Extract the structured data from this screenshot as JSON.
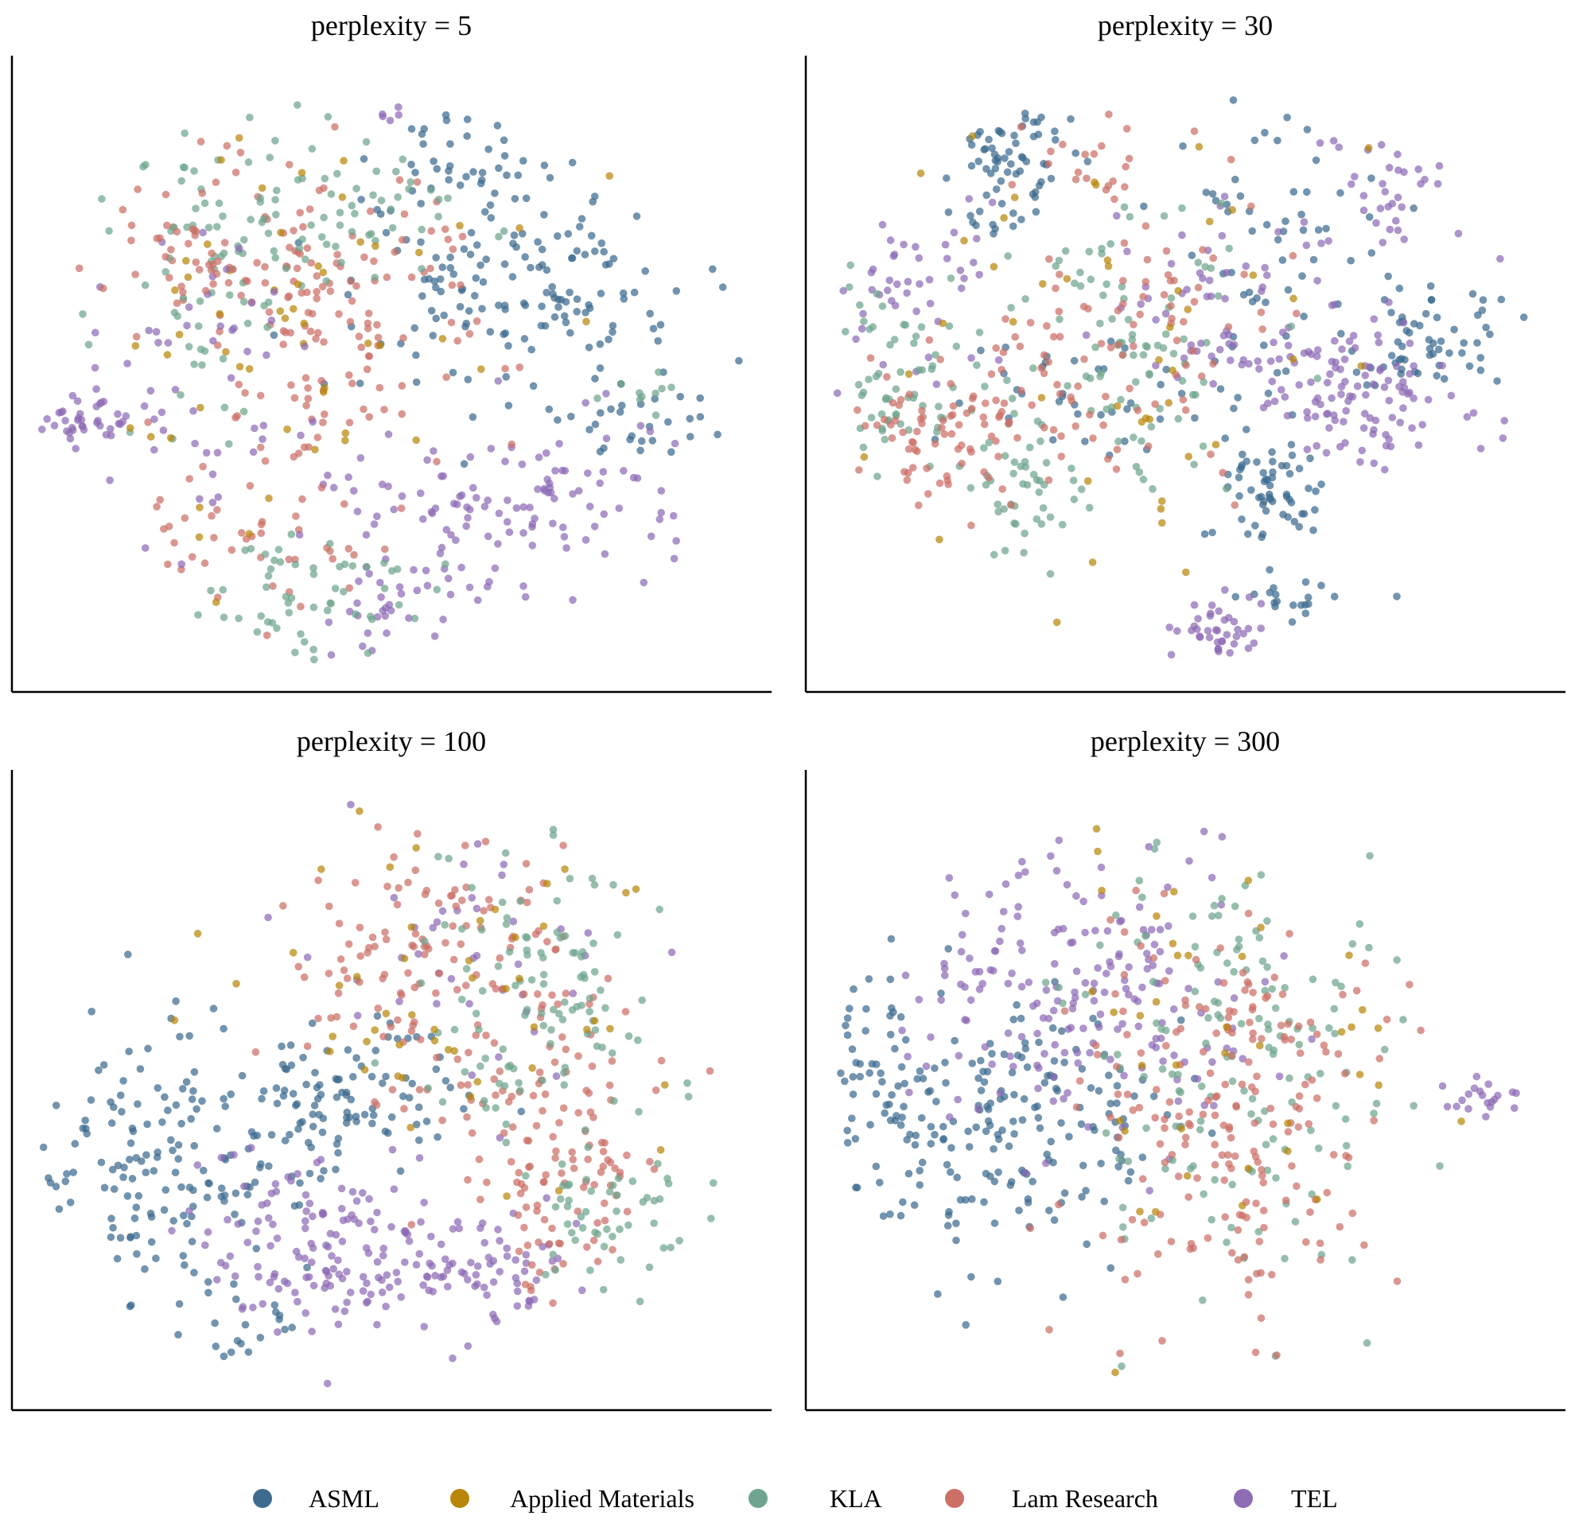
{
  "chart_data": [
    {
      "type": "scatter",
      "title": "perplexity = 5",
      "n_points_approx": 1000,
      "clusters": [
        {
          "series": "TEL",
          "cx": 0.07,
          "cy": 0.58,
          "sx": 0.04,
          "sy": 0.02,
          "n": 35
        },
        {
          "series": "ASML",
          "cx": 0.68,
          "cy": 0.39,
          "sx": 0.14,
          "sy": 0.09,
          "n": 150
        },
        {
          "series": "ASML",
          "cx": 0.6,
          "cy": 0.17,
          "sx": 0.06,
          "sy": 0.05,
          "n": 40
        },
        {
          "series": "ASML",
          "cx": 0.86,
          "cy": 0.6,
          "sx": 0.06,
          "sy": 0.03,
          "n": 25
        },
        {
          "series": "TEL",
          "cx": 0.66,
          "cy": 0.73,
          "sx": 0.12,
          "sy": 0.07,
          "n": 120
        },
        {
          "series": "TEL",
          "cx": 0.5,
          "cy": 0.9,
          "sx": 0.05,
          "sy": 0.04,
          "n": 30
        },
        {
          "series": "Lam Research",
          "cx": 0.4,
          "cy": 0.4,
          "sx": 0.11,
          "sy": 0.13,
          "n": 150
        },
        {
          "series": "Lam Research",
          "cx": 0.32,
          "cy": 0.78,
          "sx": 0.1,
          "sy": 0.06,
          "n": 45
        },
        {
          "series": "KLA",
          "cx": 0.36,
          "cy": 0.24,
          "sx": 0.14,
          "sy": 0.07,
          "n": 90
        },
        {
          "series": "KLA",
          "cx": 0.38,
          "cy": 0.88,
          "sx": 0.08,
          "sy": 0.05,
          "n": 55
        },
        {
          "series": "KLA",
          "cx": 0.22,
          "cy": 0.45,
          "sx": 0.06,
          "sy": 0.08,
          "n": 35
        },
        {
          "series": "KLA",
          "cx": 0.88,
          "cy": 0.55,
          "sx": 0.03,
          "sy": 0.03,
          "n": 10
        },
        {
          "series": "Applied Materials",
          "cx": 0.35,
          "cy": 0.4,
          "sx": 0.16,
          "sy": 0.18,
          "n": 55
        },
        {
          "series": "TEL",
          "cx": 0.22,
          "cy": 0.55,
          "sx": 0.09,
          "sy": 0.14,
          "n": 55
        },
        {
          "series": "TEL",
          "cx": 0.5,
          "cy": 0.08,
          "sx": 0.01,
          "sy": 0.01,
          "n": 5
        },
        {
          "series": "Lam Research",
          "cx": 0.2,
          "cy": 0.32,
          "sx": 0.06,
          "sy": 0.05,
          "n": 35
        }
      ]
    },
    {
      "type": "scatter",
      "title": "perplexity = 30",
      "n_points_approx": 1000,
      "clusters": [
        {
          "series": "ASML",
          "cx": 0.25,
          "cy": 0.15,
          "sx": 0.06,
          "sy": 0.06,
          "n": 70
        },
        {
          "series": "ASML",
          "cx": 0.64,
          "cy": 0.3,
          "sx": 0.08,
          "sy": 0.12,
          "n": 60
        },
        {
          "series": "ASML",
          "cx": 0.85,
          "cy": 0.45,
          "sx": 0.06,
          "sy": 0.06,
          "n": 60
        },
        {
          "series": "ASML",
          "cx": 0.62,
          "cy": 0.7,
          "sx": 0.04,
          "sy": 0.05,
          "n": 60
        },
        {
          "series": "ASML",
          "cx": 0.66,
          "cy": 0.88,
          "sx": 0.05,
          "sy": 0.03,
          "n": 20
        },
        {
          "series": "ASML",
          "cx": 0.35,
          "cy": 0.55,
          "sx": 0.09,
          "sy": 0.06,
          "n": 35
        },
        {
          "series": "TEL",
          "cx": 0.75,
          "cy": 0.55,
          "sx": 0.07,
          "sy": 0.06,
          "n": 100
        },
        {
          "series": "TEL",
          "cx": 0.58,
          "cy": 0.42,
          "sx": 0.1,
          "sy": 0.08,
          "n": 70
        },
        {
          "series": "TEL",
          "cx": 0.55,
          "cy": 0.93,
          "sx": 0.03,
          "sy": 0.03,
          "n": 40
        },
        {
          "series": "TEL",
          "cx": 0.1,
          "cy": 0.35,
          "sx": 0.07,
          "sy": 0.08,
          "n": 45
        },
        {
          "series": "TEL",
          "cx": 0.78,
          "cy": 0.18,
          "sx": 0.05,
          "sy": 0.06,
          "n": 35
        },
        {
          "series": "KLA",
          "cx": 0.1,
          "cy": 0.52,
          "sx": 0.06,
          "sy": 0.08,
          "n": 70
        },
        {
          "series": "KLA",
          "cx": 0.42,
          "cy": 0.48,
          "sx": 0.09,
          "sy": 0.11,
          "n": 90
        },
        {
          "series": "KLA",
          "cx": 0.27,
          "cy": 0.72,
          "sx": 0.05,
          "sy": 0.05,
          "n": 40
        },
        {
          "series": "Lam Research",
          "cx": 0.17,
          "cy": 0.6,
          "sx": 0.07,
          "sy": 0.06,
          "n": 80
        },
        {
          "series": "Lam Research",
          "cx": 0.42,
          "cy": 0.48,
          "sx": 0.1,
          "sy": 0.12,
          "n": 90
        },
        {
          "series": "Lam Research",
          "cx": 0.38,
          "cy": 0.16,
          "sx": 0.06,
          "sy": 0.05,
          "n": 20
        },
        {
          "series": "Applied Materials",
          "cx": 0.4,
          "cy": 0.42,
          "sx": 0.2,
          "sy": 0.22,
          "n": 45
        }
      ]
    },
    {
      "type": "scatter",
      "title": "perplexity = 100",
      "n_points_approx": 1000,
      "clusters": [
        {
          "series": "ASML",
          "cx": 0.17,
          "cy": 0.62,
          "sx": 0.1,
          "sy": 0.12,
          "n": 160
        },
        {
          "series": "ASML",
          "cx": 0.45,
          "cy": 0.53,
          "sx": 0.08,
          "sy": 0.07,
          "n": 90
        },
        {
          "series": "ASML",
          "cx": 0.3,
          "cy": 0.92,
          "sx": 0.04,
          "sy": 0.03,
          "n": 15
        },
        {
          "series": "TEL",
          "cx": 0.4,
          "cy": 0.77,
          "sx": 0.1,
          "sy": 0.07,
          "n": 140
        },
        {
          "series": "TEL",
          "cx": 0.62,
          "cy": 0.82,
          "sx": 0.08,
          "sy": 0.06,
          "n": 70
        },
        {
          "series": "TEL",
          "cx": 0.58,
          "cy": 0.27,
          "sx": 0.11,
          "sy": 0.1,
          "n": 40
        },
        {
          "series": "Lam Research",
          "cx": 0.55,
          "cy": 0.28,
          "sx": 0.1,
          "sy": 0.1,
          "n": 120
        },
        {
          "series": "Lam Research",
          "cx": 0.75,
          "cy": 0.7,
          "sx": 0.07,
          "sy": 0.07,
          "n": 70
        },
        {
          "series": "Lam Research",
          "cx": 0.7,
          "cy": 0.5,
          "sx": 0.1,
          "sy": 0.08,
          "n": 60
        },
        {
          "series": "KLA",
          "cx": 0.7,
          "cy": 0.35,
          "sx": 0.09,
          "sy": 0.12,
          "n": 110
        },
        {
          "series": "KLA",
          "cx": 0.82,
          "cy": 0.72,
          "sx": 0.06,
          "sy": 0.06,
          "n": 50
        },
        {
          "series": "Applied Materials",
          "cx": 0.6,
          "cy": 0.35,
          "sx": 0.14,
          "sy": 0.17,
          "n": 50
        }
      ]
    },
    {
      "type": "scatter",
      "title": "perplexity = 300",
      "n_points_approx": 1000,
      "clusters": [
        {
          "series": "ASML",
          "cx": 0.24,
          "cy": 0.58,
          "sx": 0.12,
          "sy": 0.12,
          "n": 200
        },
        {
          "series": "ASML",
          "cx": 0.06,
          "cy": 0.48,
          "sx": 0.03,
          "sy": 0.06,
          "n": 30
        },
        {
          "series": "TEL",
          "cx": 0.35,
          "cy": 0.35,
          "sx": 0.12,
          "sy": 0.12,
          "n": 190
        },
        {
          "series": "TEL",
          "cx": 0.92,
          "cy": 0.52,
          "sx": 0.03,
          "sy": 0.02,
          "n": 20
        },
        {
          "series": "KLA",
          "cx": 0.58,
          "cy": 0.45,
          "sx": 0.1,
          "sy": 0.2,
          "n": 150
        },
        {
          "series": "Lam Research",
          "cx": 0.56,
          "cy": 0.55,
          "sx": 0.11,
          "sy": 0.16,
          "n": 200
        },
        {
          "series": "Applied Materials",
          "cx": 0.55,
          "cy": 0.45,
          "sx": 0.15,
          "sy": 0.22,
          "n": 40
        }
      ]
    }
  ],
  "legend": {
    "position": "bottom",
    "items": [
      {
        "label": "ASML",
        "color": "#3d6b8f"
      },
      {
        "label": "Applied Materials",
        "color": "#b8860b"
      },
      {
        "label": "KLA",
        "color": "#6fa58e"
      },
      {
        "label": "Lam Research",
        "color": "#cc6f66"
      },
      {
        "label": "TEL",
        "color": "#8e6bb5"
      }
    ]
  }
}
